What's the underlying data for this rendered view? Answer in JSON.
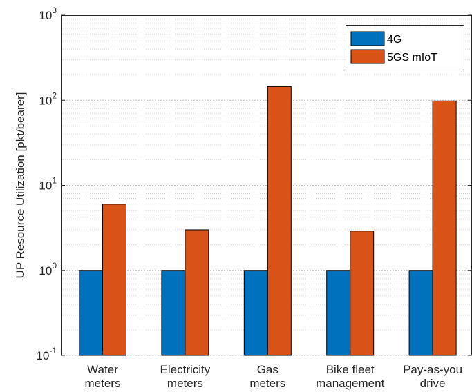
{
  "chart_data": {
    "type": "bar",
    "yscale": "log",
    "ylim": [
      0.1,
      1000
    ],
    "ylabel": "UP Resource Utilization [pkt/bearer]",
    "xlabel": "",
    "title": "",
    "grid": "y-major-and-minor",
    "legend_position": "top-right",
    "yticks": [
      {
        "base": "10",
        "exp": "-1",
        "value": 0.1
      },
      {
        "base": "10",
        "exp": "0",
        "value": 1
      },
      {
        "base": "10",
        "exp": "1",
        "value": 10
      },
      {
        "base": "10",
        "exp": "2",
        "value": 100
      },
      {
        "base": "10",
        "exp": "3",
        "value": 1000
      }
    ],
    "categories": [
      [
        "Water",
        "meters"
      ],
      [
        "Electricity",
        "meters"
      ],
      [
        "Gas",
        "meters"
      ],
      [
        "Bike fleet",
        "management"
      ],
      [
        "Pay-as-you",
        "drive"
      ]
    ],
    "series": [
      {
        "name": "4G",
        "color": "#0072BD",
        "values": [
          1,
          1,
          1,
          1,
          1
        ]
      },
      {
        "name": "5GS mIoT",
        "color": "#D95319",
        "values": [
          6,
          3,
          145,
          2.9,
          98
        ]
      }
    ]
  }
}
